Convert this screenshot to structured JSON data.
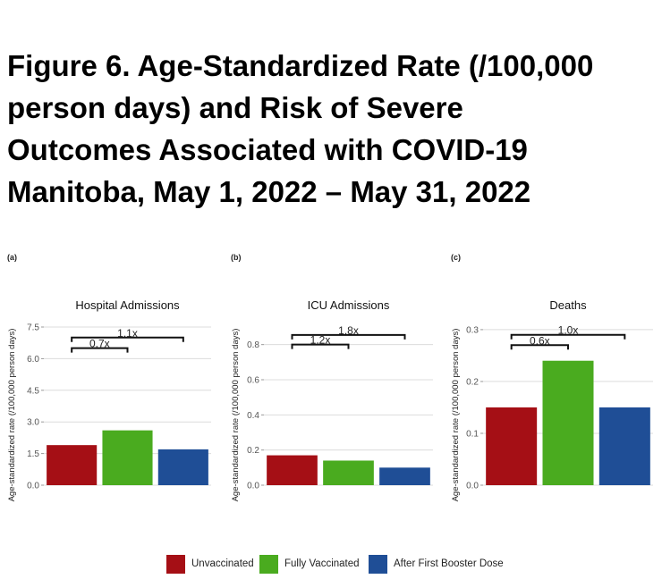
{
  "figure": {
    "title_lines": [
      "Figure 6. Age-Standardized Rate (/100,000",
      "person days) and Risk of Severe",
      "Outcomes Associated with COVID-19",
      "Manitoba, May 1, 2022 – May 31, 2022"
    ]
  },
  "colors": {
    "unvaccinated": "#a50f15",
    "fully_vaccinated": "#4aab1f",
    "booster": "#1f4e96",
    "grid": "#dcdcdc",
    "axis_text": "#555555"
  },
  "legend": {
    "items": [
      {
        "label": "Unvaccinated",
        "color": "#a50f15"
      },
      {
        "label": "Fully Vaccinated",
        "color": "#4aab1f"
      },
      {
        "label": "After First Booster Dose",
        "color": "#1f4e96"
      }
    ]
  },
  "chart_data": [
    {
      "type": "bar",
      "panel_label": "(a)",
      "title": "Hospital Admissions",
      "ylabel": "Age-standardized rate (/100,000 person days)",
      "categories": [
        "Unvaccinated",
        "Fully Vaccinated",
        "After First Booster Dose"
      ],
      "values": [
        1.9,
        2.6,
        1.7
      ],
      "ylim": [
        0,
        7.5
      ],
      "yticks": [
        0.0,
        1.5,
        3.0,
        4.5,
        6.0,
        7.5
      ],
      "ytick_labels": [
        "0.0",
        "1.5",
        "3.0",
        "4.5",
        "6.0",
        "7.5"
      ],
      "comparisons": [
        {
          "label": "0.7x",
          "from": 0,
          "to": 1,
          "level": 6.5
        },
        {
          "label": "1.1x",
          "from": 0,
          "to": 2,
          "level": 7.0
        }
      ],
      "grid": true
    },
    {
      "type": "bar",
      "panel_label": "(b)",
      "title": "ICU Admissions",
      "ylabel": "Age-standardized rate (/100,000 person days)",
      "categories": [
        "Unvaccinated",
        "Fully Vaccinated",
        "After First Booster Dose"
      ],
      "values": [
        0.17,
        0.14,
        0.1
      ],
      "ylim": [
        0,
        0.9
      ],
      "yticks": [
        0.0,
        0.2,
        0.4,
        0.6,
        0.8
      ],
      "ytick_labels": [
        "0.0",
        "0.2",
        "0.4",
        "0.6",
        "0.8"
      ],
      "comparisons": [
        {
          "label": "1.2x",
          "from": 0,
          "to": 1,
          "level": 0.8
        },
        {
          "label": "1.8x",
          "from": 0,
          "to": 2,
          "level": 0.855
        }
      ],
      "grid": true
    },
    {
      "type": "bar",
      "panel_label": "(c)",
      "title": "Deaths",
      "ylabel": "Age-standardized rate (/100,000 person days)",
      "categories": [
        "Unvaccinated",
        "Fully Vaccinated",
        "After First Booster Dose"
      ],
      "values": [
        0.15,
        0.24,
        0.15
      ],
      "ylim": [
        0,
        0.305
      ],
      "yticks": [
        0.0,
        0.1,
        0.2,
        0.3
      ],
      "ytick_labels": [
        "0.0",
        "0.1",
        "0.2",
        "0.3"
      ],
      "comparisons": [
        {
          "label": "0.6x",
          "from": 0,
          "to": 1,
          "level": 0.27
        },
        {
          "label": "1.0x",
          "from": 0,
          "to": 2,
          "level": 0.29
        }
      ],
      "grid": true
    }
  ]
}
